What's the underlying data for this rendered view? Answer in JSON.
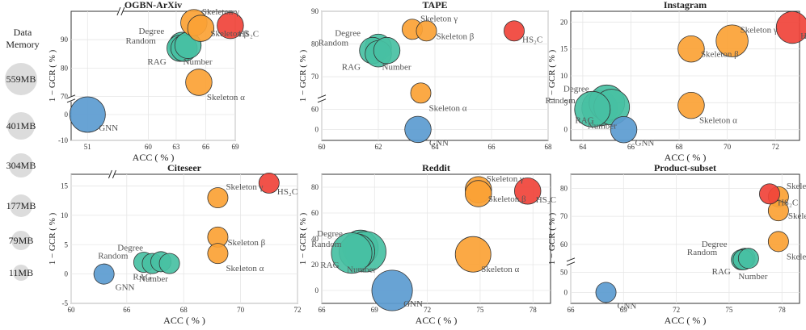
{
  "legend": {
    "title_line1": "Data",
    "title_line2": "Memory",
    "sizes": [
      "559MB",
      "401MB",
      "304MB",
      "177MB",
      "79MB",
      "11MB"
    ],
    "bubble_color": "#dcdcdc"
  },
  "colors": {
    "GNN": "#5b9bd0",
    "HS2C": "#f0433a",
    "Skeleton": "#fba235",
    "Base": "#48c0a3"
  },
  "chart_data": [
    {
      "type": "scatter",
      "title": "OGBN-ArXiv",
      "xlabel": "ACC ( % )",
      "ylabel": "1 − GCR ( % )",
      "xticks": [
        "51",
        "60",
        "63",
        "66",
        "69"
      ],
      "yticks": [
        "-10",
        "0",
        "70",
        "80",
        "90"
      ],
      "points": [
        {
          "label": "GNN",
          "group": "GNN",
          "x": 51.0,
          "y": 0,
          "size_mb": 401
        },
        {
          "label": "HS₂C",
          "group": "HS2C",
          "x": 68.5,
          "y": 95,
          "size_mb": 177
        },
        {
          "label": "Skeleton γ",
          "group": "Skeleton",
          "x": 64.8,
          "y": 96,
          "size_mb": 177
        },
        {
          "label": "Skeleton β",
          "group": "Skeleton",
          "x": 65.5,
          "y": 94,
          "size_mb": 177
        },
        {
          "label": "Skeleton α",
          "group": "Skeleton",
          "x": 65.3,
          "y": 75,
          "size_mb": 177
        },
        {
          "label": "Degree",
          "group": "Base",
          "x": 63.6,
          "y": 88,
          "size_mb": 177
        },
        {
          "label": "Random",
          "group": "Base",
          "x": 63.4,
          "y": 87,
          "size_mb": 177
        },
        {
          "label": "RAG",
          "group": "Base",
          "x": 63.8,
          "y": 87,
          "size_mb": 177
        },
        {
          "label": "Number",
          "group": "Base",
          "x": 64.2,
          "y": 88,
          "size_mb": 177
        }
      ]
    },
    {
      "type": "scatter",
      "title": "TAPE",
      "xlabel": "",
      "ylabel": "1 − GCR ( % )",
      "xticks": [
        "60",
        "62",
        "64",
        "66",
        "68"
      ],
      "yticks": [
        "0",
        "60",
        "70",
        "80",
        "90"
      ],
      "points": [
        {
          "label": "GNN",
          "group": "GNN",
          "x": 63.4,
          "y": 0,
          "size_mb": 177
        },
        {
          "label": "HS₂C",
          "group": "HS2C",
          "x": 66.8,
          "y": 84,
          "size_mb": 79
        },
        {
          "label": "Skeleton γ",
          "group": "Skeleton",
          "x": 63.2,
          "y": 84.5,
          "size_mb": 79
        },
        {
          "label": "Skeleton β",
          "group": "Skeleton",
          "x": 63.7,
          "y": 84,
          "size_mb": 79
        },
        {
          "label": "Skeleton α",
          "group": "Skeleton",
          "x": 63.5,
          "y": 65,
          "size_mb": 79
        },
        {
          "label": "Degree",
          "group": "Base",
          "x": 62.0,
          "y": 79,
          "size_mb": 177
        },
        {
          "label": "Random",
          "group": "Base",
          "x": 61.8,
          "y": 78,
          "size_mb": 177
        },
        {
          "label": "RAG",
          "group": "Base",
          "x": 62.0,
          "y": 77,
          "size_mb": 177
        },
        {
          "label": "Number",
          "group": "Base",
          "x": 62.3,
          "y": 78,
          "size_mb": 177
        }
      ]
    },
    {
      "type": "scatter",
      "title": "Instagram",
      "xlabel": "ACC ( % )",
      "ylabel": "1 − GCR ( % )",
      "xticks": [
        "64",
        "66",
        "68",
        "70",
        "72"
      ],
      "yticks": [
        "0",
        "5",
        "10",
        "15",
        "20"
      ],
      "points": [
        {
          "label": "GNN",
          "group": "GNN",
          "x": 65.7,
          "y": 0,
          "size_mb": 177
        },
        {
          "label": "HS₂C",
          "group": "HS2C",
          "x": 72.7,
          "y": 19,
          "size_mb": 304
        },
        {
          "label": "Skeleton β",
          "group": "Skeleton",
          "x": 68.5,
          "y": 15,
          "size_mb": 177
        },
        {
          "label": "Skeleton γ",
          "group": "Skeleton",
          "x": 70.2,
          "y": 16.5,
          "size_mb": 304
        },
        {
          "label": "Skeleton α",
          "group": "Skeleton",
          "x": 68.5,
          "y": 4.5,
          "size_mb": 177
        },
        {
          "label": "Random",
          "group": "Base",
          "x": 64.7,
          "y": 4.0,
          "size_mb": 401
        },
        {
          "label": "Degree",
          "group": "Base",
          "x": 65.0,
          "y": 5.0,
          "size_mb": 401
        },
        {
          "label": "RAG",
          "group": "Base",
          "x": 65.2,
          "y": 4.2,
          "size_mb": 401
        },
        {
          "label": "Number",
          "group": "Base",
          "x": 64.4,
          "y": 3.8,
          "size_mb": 401
        }
      ]
    },
    {
      "type": "scatter",
      "title": "Citeseer",
      "xlabel": "ACC ( % )",
      "ylabel": "1 − GCR ( % )",
      "xticks": [
        "60",
        "66",
        "68",
        "70",
        "72"
      ],
      "yticks": [
        "-5",
        "0",
        "5",
        "10",
        "15"
      ],
      "points": [
        {
          "label": "GNN",
          "group": "GNN",
          "x": 65.2,
          "y": 0,
          "size_mb": 79
        },
        {
          "label": "HS₂C",
          "group": "HS2C",
          "x": 71.0,
          "y": 15.5,
          "size_mb": 79
        },
        {
          "label": "Skeleton γ",
          "group": "Skeleton",
          "x": 69.2,
          "y": 13,
          "size_mb": 79
        },
        {
          "label": "Skeleton β",
          "group": "Skeleton",
          "x": 69.2,
          "y": 6.3,
          "size_mb": 79
        },
        {
          "label": "Skeleton α",
          "group": "Skeleton",
          "x": 69.2,
          "y": 3.5,
          "size_mb": 79
        },
        {
          "label": "Number",
          "group": "Base",
          "x": 66.6,
          "y": 2.0,
          "size_mb": 79
        },
        {
          "label": "Random",
          "group": "Base",
          "x": 66.9,
          "y": 1.8,
          "size_mb": 79
        },
        {
          "label": "Degree",
          "group": "Base",
          "x": 67.2,
          "y": 2.1,
          "size_mb": 79
        },
        {
          "label": "RAG",
          "group": "Base",
          "x": 67.5,
          "y": 1.8,
          "size_mb": 79
        }
      ]
    },
    {
      "type": "scatter",
      "title": "Reddit",
      "xlabel": "ACC ( % )",
      "ylabel": "1 − GCR ( % )",
      "xticks": [
        "66",
        "69",
        "72",
        "75",
        "78"
      ],
      "yticks": [
        "0",
        "20",
        "40",
        "60",
        "80"
      ],
      "points": [
        {
          "label": "GNN",
          "group": "GNN",
          "x": 70.0,
          "y": 0,
          "size_mb": 559
        },
        {
          "label": "HS₂C",
          "group": "HS2C",
          "x": 77.7,
          "y": 77,
          "size_mb": 177
        },
        {
          "label": "Skeleton γ",
          "group": "Skeleton",
          "x": 74.9,
          "y": 78,
          "size_mb": 177
        },
        {
          "label": "Skeleton β",
          "group": "Skeleton",
          "x": 74.9,
          "y": 75,
          "size_mb": 177
        },
        {
          "label": "Skeleton α",
          "group": "Skeleton",
          "x": 74.6,
          "y": 28,
          "size_mb": 401
        },
        {
          "label": "Degree",
          "group": "Base",
          "x": 68.2,
          "y": 33,
          "size_mb": 401
        },
        {
          "label": "Random",
          "group": "Base",
          "x": 68.5,
          "y": 30,
          "size_mb": 559
        },
        {
          "label": "RAG",
          "group": "Base",
          "x": 68.0,
          "y": 30,
          "size_mb": 401
        },
        {
          "label": "Number",
          "group": "Base",
          "x": 67.7,
          "y": 29,
          "size_mb": 559
        }
      ]
    },
    {
      "type": "scatter",
      "title": "Product-subset",
      "xlabel": "ACC ( % )",
      "ylabel": "1 − GCR ( % )",
      "xticks": [
        "66",
        "69",
        "72",
        "75",
        "78"
      ],
      "yticks": [
        "0",
        "50",
        "60",
        "70",
        "80"
      ],
      "points": [
        {
          "label": "GNN",
          "group": "GNN",
          "x": 68.0,
          "y": 0,
          "size_mb": 79
        },
        {
          "label": "HS₂C",
          "group": "HS2C",
          "x": 77.3,
          "y": 78,
          "size_mb": 79
        },
        {
          "label": "Skeleton γ",
          "group": "Skeleton",
          "x": 77.8,
          "y": 77,
          "size_mb": 79
        },
        {
          "label": "Skeleton β",
          "group": "Skeleton",
          "x": 77.8,
          "y": 72,
          "size_mb": 79
        },
        {
          "label": "Skeleton α",
          "group": "Skeleton",
          "x": 77.8,
          "y": 61,
          "size_mb": 79
        },
        {
          "label": "Degree",
          "group": "Base",
          "x": 75.9,
          "y": 55,
          "size_mb": 79
        },
        {
          "label": "Random",
          "group": "Base",
          "x": 75.7,
          "y": 54.5,
          "size_mb": 79
        },
        {
          "label": "Number",
          "group": "Base",
          "x": 75.8,
          "y": 54.5,
          "size_mb": 79
        },
        {
          "label": "RAG",
          "group": "Base",
          "x": 76.1,
          "y": 55,
          "size_mb": 79
        }
      ]
    }
  ]
}
